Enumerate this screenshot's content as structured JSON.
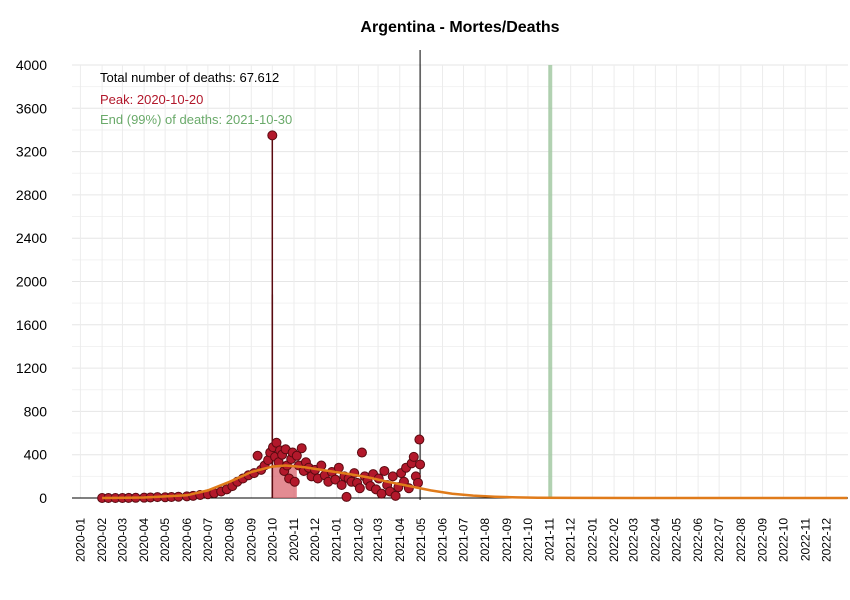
{
  "chart_data": {
    "type": "scatter",
    "title": "Argentina - Mortes/Deaths",
    "xlabel": "",
    "ylabel": "",
    "ylim": [
      0,
      4000
    ],
    "yticks": [
      0,
      400,
      800,
      1200,
      1600,
      2000,
      2400,
      2800,
      3200,
      3600,
      4000
    ],
    "xlim": [
      "2019-12-20",
      "2023-01-01"
    ],
    "x_tick_labels": [
      "2020-01",
      "2020-02",
      "2020-03",
      "2020-04",
      "2020-05",
      "2020-06",
      "2020-07",
      "2020-08",
      "2020-09",
      "2020-10",
      "2020-11",
      "2020-12",
      "2021-01",
      "2021-02",
      "2021-03",
      "2021-04",
      "2021-05",
      "2021-06",
      "2021-07",
      "2021-08",
      "2021-09",
      "2021-10",
      "2021-11",
      "2021-12",
      "2022-01",
      "2022-02",
      "2022-03",
      "2022-04",
      "2022-05",
      "2022-06",
      "2022-07",
      "2022-08",
      "2022-09",
      "2022-10",
      "2022-11",
      "2022-12"
    ],
    "grid": true,
    "annotations": {
      "total": "Total number of deaths: 67.612",
      "peak": "Peak: 2020-10-20",
      "end": "End (99%) of deaths: 2021-10-30"
    },
    "colors": {
      "points": "#b2182b",
      "point_edge": "#5a0a10",
      "fit": "#e07b1a",
      "peak_band": "#d9646e",
      "end_band": "#9fc79f",
      "total_text": "#000000",
      "peak_text": "#b2182b",
      "end_text": "#6aaa6a"
    },
    "vline_date": "2021-04-30",
    "end_band": [
      "2021-10-30",
      "2021-11-03"
    ],
    "peak_band": [
      "2020-10-02",
      "2020-11-05"
    ],
    "fit_curve": [
      [
        "2020-02-01",
        0
      ],
      [
        "2020-04-01",
        5
      ],
      [
        "2020-06-01",
        25
      ],
      [
        "2020-07-01",
        70
      ],
      [
        "2020-08-01",
        150
      ],
      [
        "2020-09-01",
        240
      ],
      [
        "2020-10-01",
        290
      ],
      [
        "2020-10-20",
        300
      ],
      [
        "2020-11-15",
        285
      ],
      [
        "2020-12-15",
        255
      ],
      [
        "2021-01-15",
        225
      ],
      [
        "2021-02-15",
        190
      ],
      [
        "2021-03-15",
        150
      ],
      [
        "2021-04-15",
        110
      ],
      [
        "2021-05-15",
        70
      ],
      [
        "2021-06-15",
        40
      ],
      [
        "2021-07-15",
        22
      ],
      [
        "2021-08-15",
        12
      ],
      [
        "2021-09-15",
        6
      ],
      [
        "2021-10-15",
        3
      ],
      [
        "2021-12-01",
        1
      ],
      [
        "2022-03-01",
        0
      ],
      [
        "2022-12-31",
        0
      ]
    ],
    "spike_lines": [
      [
        "2020-10-01",
        3350
      ],
      [
        "2020-10-01",
        1880
      ]
    ],
    "points": [
      [
        "2020-02-01",
        0
      ],
      [
        "2020-02-10",
        0
      ],
      [
        "2020-02-20",
        0
      ],
      [
        "2020-03-01",
        0
      ],
      [
        "2020-03-10",
        1
      ],
      [
        "2020-03-20",
        2
      ],
      [
        "2020-04-01",
        3
      ],
      [
        "2020-04-10",
        5
      ],
      [
        "2020-04-20",
        8
      ],
      [
        "2020-05-01",
        7
      ],
      [
        "2020-05-10",
        9
      ],
      [
        "2020-05-20",
        12
      ],
      [
        "2020-06-01",
        15
      ],
      [
        "2020-06-10",
        20
      ],
      [
        "2020-06-20",
        28
      ],
      [
        "2020-07-01",
        35
      ],
      [
        "2020-07-10",
        45
      ],
      [
        "2020-07-20",
        60
      ],
      [
        "2020-07-28",
        80
      ],
      [
        "2020-08-05",
        110
      ],
      [
        "2020-08-12",
        150
      ],
      [
        "2020-08-20",
        180
      ],
      [
        "2020-08-28",
        210
      ],
      [
        "2020-09-05",
        230
      ],
      [
        "2020-09-10",
        390
      ],
      [
        "2020-09-15",
        260
      ],
      [
        "2020-09-20",
        300
      ],
      [
        "2020-09-25",
        350
      ],
      [
        "2020-09-28",
        420
      ],
      [
        "2020-10-02",
        470
      ],
      [
        "2020-10-05",
        380
      ],
      [
        "2020-10-07",
        510
      ],
      [
        "2020-10-10",
        330
      ],
      [
        "2020-10-12",
        440
      ],
      [
        "2020-10-15",
        400
      ],
      [
        "2020-10-18",
        250
      ],
      [
        "2020-10-20",
        450
      ],
      [
        "2020-10-22",
        300
      ],
      [
        "2020-10-25",
        180
      ],
      [
        "2020-10-28",
        360
      ],
      [
        "2020-10-30",
        420
      ],
      [
        "2020-11-02",
        150
      ],
      [
        "2020-11-05",
        390
      ],
      [
        "2020-11-08",
        300
      ],
      [
        "2020-11-12",
        460
      ],
      [
        "2020-11-15",
        250
      ],
      [
        "2020-11-18",
        330
      ],
      [
        "2020-11-22",
        280
      ],
      [
        "2020-11-26",
        200
      ],
      [
        "2020-12-01",
        260
      ],
      [
        "2020-12-05",
        180
      ],
      [
        "2020-12-10",
        300
      ],
      [
        "2020-12-15",
        210
      ],
      [
        "2020-12-20",
        150
      ],
      [
        "2020-12-25",
        240
      ],
      [
        "2020-12-30",
        170
      ],
      [
        "2021-01-04",
        280
      ],
      [
        "2021-01-08",
        120
      ],
      [
        "2021-01-12",
        200
      ],
      [
        "2021-01-15",
        10
      ],
      [
        "2021-01-18",
        180
      ],
      [
        "2021-01-22",
        150
      ],
      [
        "2021-01-26",
        230
      ],
      [
        "2021-01-30",
        140
      ],
      [
        "2021-02-03",
        90
      ],
      [
        "2021-02-06",
        420
      ],
      [
        "2021-02-10",
        200
      ],
      [
        "2021-02-14",
        160
      ],
      [
        "2021-02-18",
        110
      ],
      [
        "2021-02-22",
        220
      ],
      [
        "2021-02-26",
        80
      ],
      [
        "2021-03-02",
        180
      ],
      [
        "2021-03-06",
        40
      ],
      [
        "2021-03-10",
        250
      ],
      [
        "2021-03-14",
        120
      ],
      [
        "2021-03-18",
        60
      ],
      [
        "2021-03-22",
        200
      ],
      [
        "2021-03-26",
        20
      ],
      [
        "2021-03-30",
        100
      ],
      [
        "2021-04-03",
        230
      ],
      [
        "2021-04-07",
        150
      ],
      [
        "2021-04-10",
        280
      ],
      [
        "2021-04-14",
        90
      ],
      [
        "2021-04-18",
        320
      ],
      [
        "2021-04-21",
        380
      ],
      [
        "2021-04-24",
        200
      ],
      [
        "2021-04-27",
        140
      ],
      [
        "2021-04-29",
        540
      ],
      [
        "2021-04-30",
        310
      ]
    ]
  }
}
